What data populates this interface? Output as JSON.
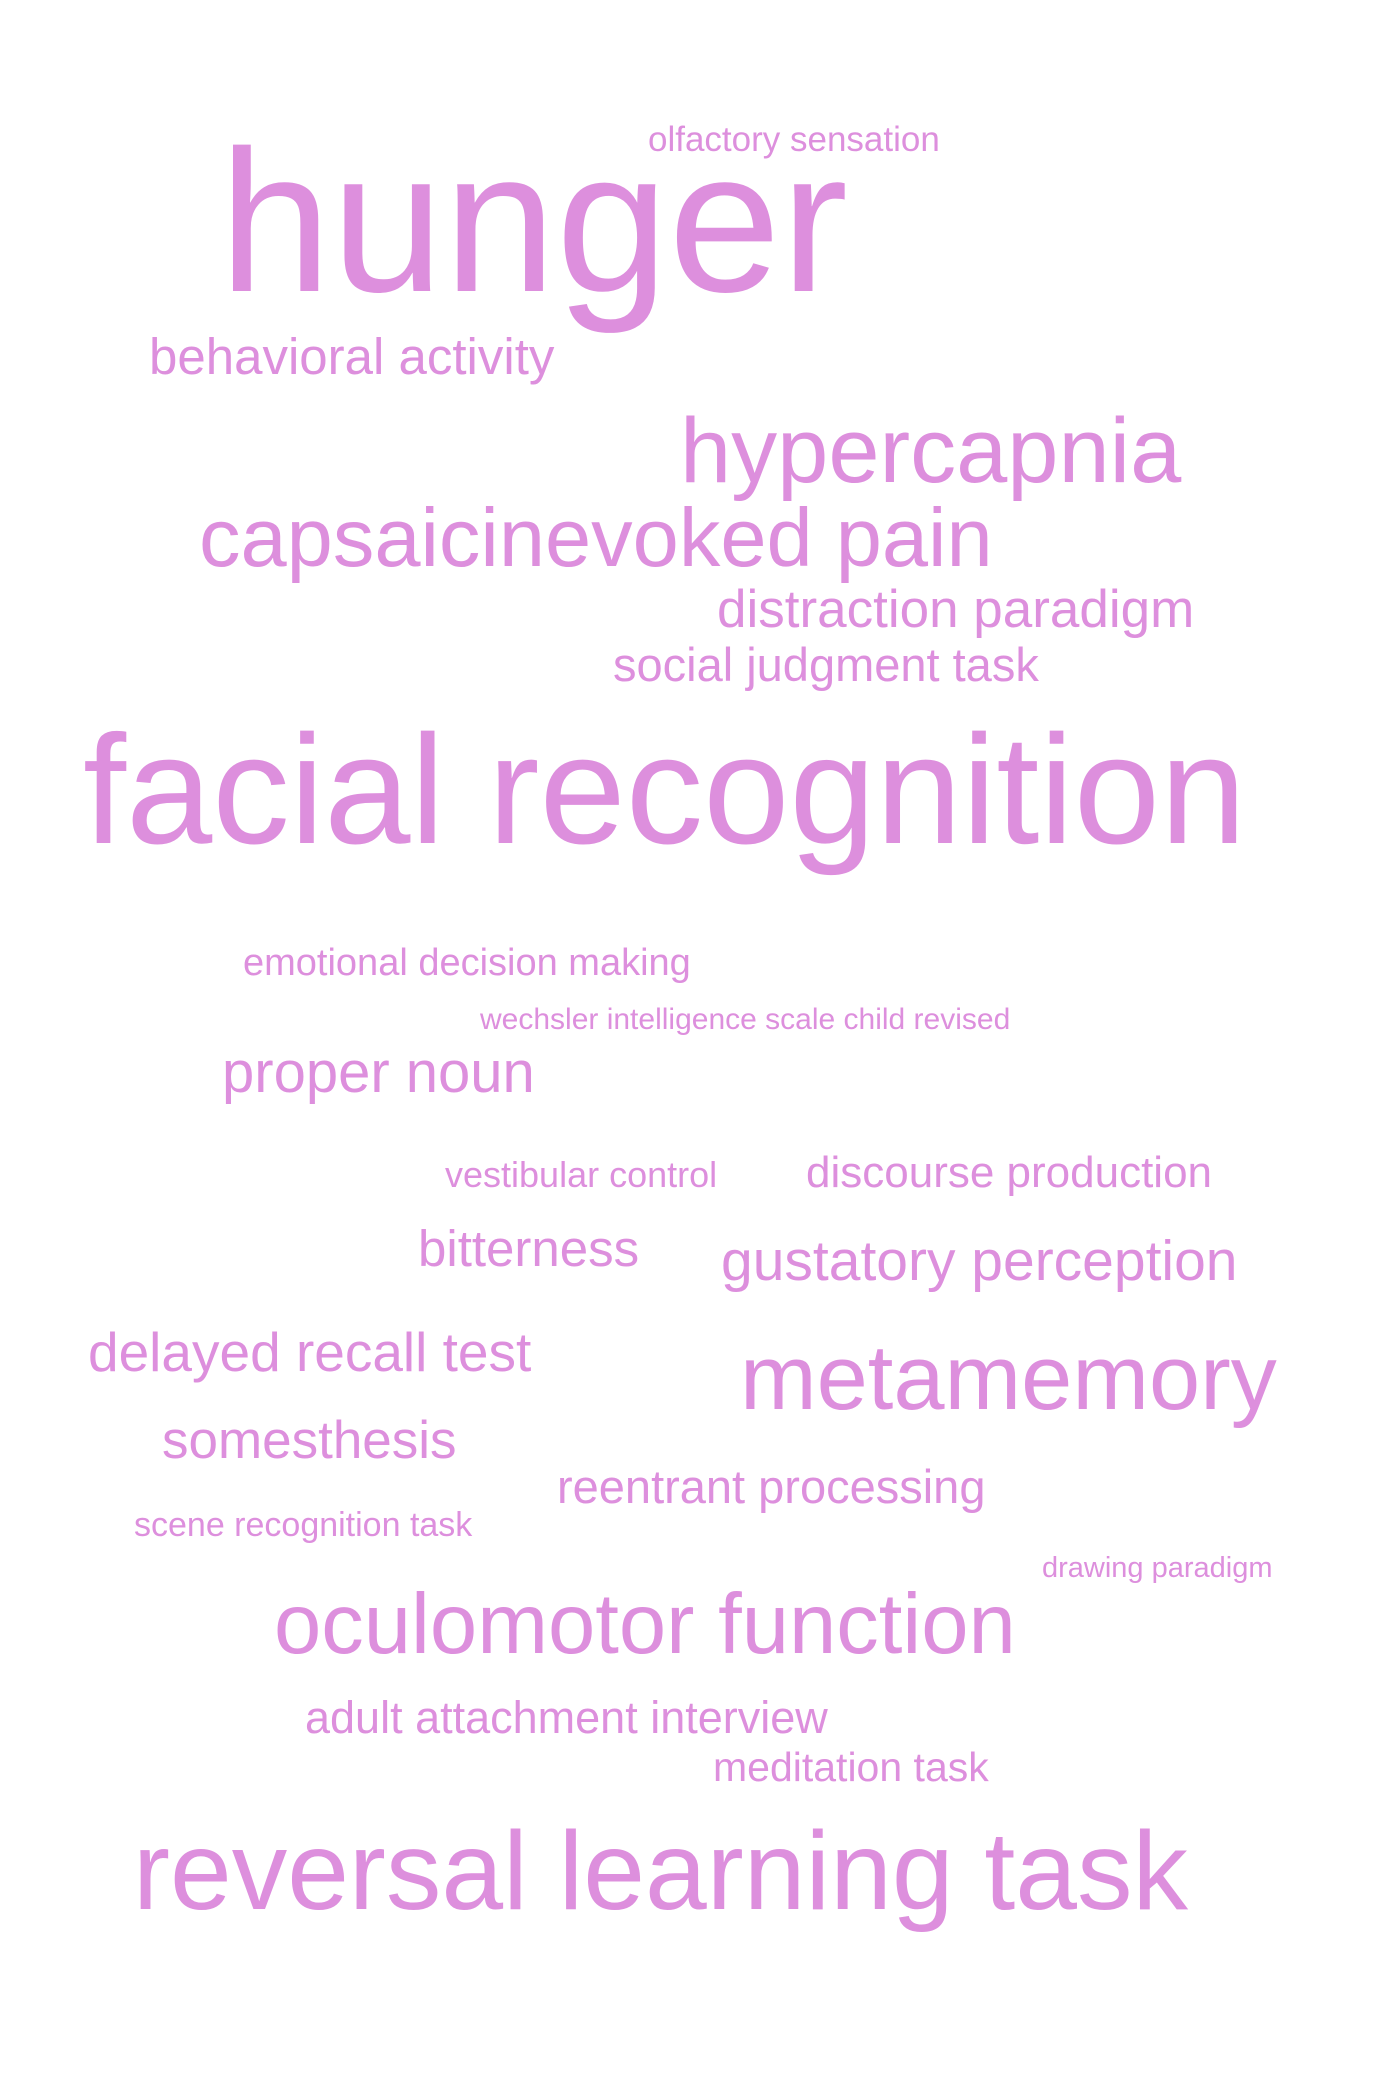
{
  "word_color": "#dd8fdd",
  "words": [
    {
      "text": "olfactory sensation"
    },
    {
      "text": "hunger"
    },
    {
      "text": "behavioral activity"
    },
    {
      "text": "hypercapnia"
    },
    {
      "text": "capsaicinevoked pain"
    },
    {
      "text": "distraction paradigm"
    },
    {
      "text": "social judgment task"
    },
    {
      "text": "facial recognition"
    },
    {
      "text": "emotional decision making"
    },
    {
      "text": "wechsler intelligence scale child revised"
    },
    {
      "text": "proper noun"
    },
    {
      "text": "vestibular control"
    },
    {
      "text": "discourse production"
    },
    {
      "text": "bitterness"
    },
    {
      "text": "gustatory perception"
    },
    {
      "text": "delayed recall test"
    },
    {
      "text": "metamemory"
    },
    {
      "text": "somesthesis"
    },
    {
      "text": "reentrant processing"
    },
    {
      "text": "scene recognition task"
    },
    {
      "text": "drawing paradigm"
    },
    {
      "text": "oculomotor function"
    },
    {
      "text": "adult attachment interview"
    },
    {
      "text": "meditation task"
    },
    {
      "text": "reversal learning task"
    }
  ]
}
